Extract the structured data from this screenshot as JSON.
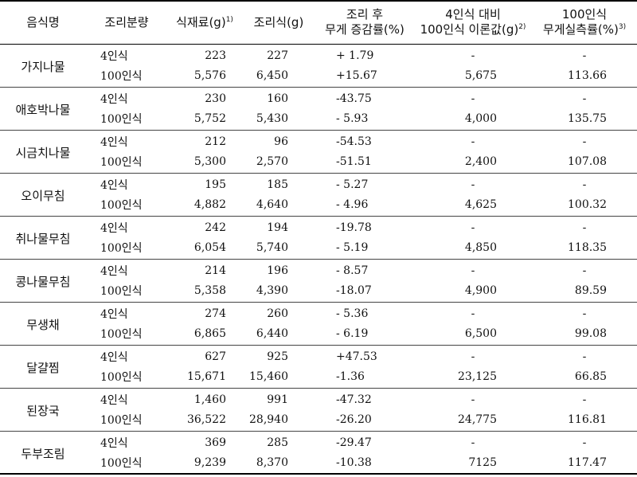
{
  "headers": {
    "dish": "음식명",
    "amount": "조리분량",
    "raw": "식재료(g)",
    "raw_sup": "1)",
    "cooked": "조리식(g)",
    "change_line1": "조리 후",
    "change_line2": "무게 증감률(%)",
    "theory_line1": "4인식 대비",
    "theory_line2": "100인식 이론값(g)",
    "theory_sup": "2)",
    "loss_line1": "100인식",
    "loss_line2": "무게실측률(%)",
    "loss_sup": "3)"
  },
  "rows": [
    {
      "dish": "가지나물",
      "r4": {
        "amount": "4인식",
        "raw": "223",
        "cooked": "227",
        "change": "+  1.79",
        "theory": "-",
        "loss": "-"
      },
      "r100": {
        "amount": "100인식",
        "raw": "5,576",
        "cooked": "6,450",
        "change": "+15.67",
        "theory": "5,675",
        "loss": "113.66"
      }
    },
    {
      "dish": "애호박나물",
      "r4": {
        "amount": "4인식",
        "raw": "230",
        "cooked": "160",
        "change": "-43.75",
        "theory": "-",
        "loss": "-"
      },
      "r100": {
        "amount": "100인식",
        "raw": "5,752",
        "cooked": "5,430",
        "change": "-  5.93",
        "theory": "4,000",
        "loss": "135.75"
      }
    },
    {
      "dish": "시금치나물",
      "r4": {
        "amount": "4인식",
        "raw": "212",
        "cooked": "96",
        "change": "-54.53",
        "theory": "-",
        "loss": "-"
      },
      "r100": {
        "amount": "100인식",
        "raw": "5,300",
        "cooked": "2,570",
        "change": "-51.51",
        "theory": "2,400",
        "loss": "107.08"
      }
    },
    {
      "dish": "오이무침",
      "r4": {
        "amount": "4인식",
        "raw": "195",
        "cooked": "185",
        "change": "-  5.27",
        "theory": "-",
        "loss": "-"
      },
      "r100": {
        "amount": "100인식",
        "raw": "4,882",
        "cooked": "4,640",
        "change": "-  4.96",
        "theory": "4,625",
        "loss": "100.32"
      }
    },
    {
      "dish": "취나물무침",
      "r4": {
        "amount": "4인식",
        "raw": "242",
        "cooked": "194",
        "change": "-19.78",
        "theory": "-",
        "loss": "-"
      },
      "r100": {
        "amount": "100인식",
        "raw": "6,054",
        "cooked": "5,740",
        "change": "-  5.19",
        "theory": "4,850",
        "loss": "118.35"
      }
    },
    {
      "dish": "콩나물무침",
      "r4": {
        "amount": "4인식",
        "raw": "214",
        "cooked": "196",
        "change": "-  8.57",
        "theory": "-",
        "loss": "-"
      },
      "r100": {
        "amount": "100인식",
        "raw": "5,358",
        "cooked": "4,390",
        "change": "-18.07",
        "theory": "4,900",
        "loss": "89.59"
      }
    },
    {
      "dish": "무생채",
      "r4": {
        "amount": "4인식",
        "raw": "274",
        "cooked": "260",
        "change": "-  5.36",
        "theory": "-",
        "loss": "-"
      },
      "r100": {
        "amount": "100인식",
        "raw": "6,865",
        "cooked": "6,440",
        "change": "-  6.19",
        "theory": "6,500",
        "loss": "99.08"
      }
    },
    {
      "dish": "달걀찜",
      "r4": {
        "amount": "4인식",
        "raw": "627",
        "cooked": "925",
        "change": "+47.53",
        "theory": "-",
        "loss": "-"
      },
      "r100": {
        "amount": "100인식",
        "raw": "15,671",
        "cooked": "15,460",
        "change": "-1.36",
        "theory": "23,125",
        "loss": "66.85"
      }
    },
    {
      "dish": "된장국",
      "r4": {
        "amount": "4인식",
        "raw": "1,460",
        "cooked": "991",
        "change": "-47.32",
        "theory": "-",
        "loss": "-"
      },
      "r100": {
        "amount": "100인식",
        "raw": "36,522",
        "cooked": "28,940",
        "change": "-26.20",
        "theory": "24,775",
        "loss": "116.81"
      }
    },
    {
      "dish": "두부조림",
      "r4": {
        "amount": "4인식",
        "raw": "369",
        "cooked": "285",
        "change": "-29.47",
        "theory": "-",
        "loss": "-"
      },
      "r100": {
        "amount": "100인식",
        "raw": "9,239",
        "cooked": "8,370",
        "change": "-10.38",
        "theory": "7125",
        "loss": "117.47"
      }
    }
  ]
}
